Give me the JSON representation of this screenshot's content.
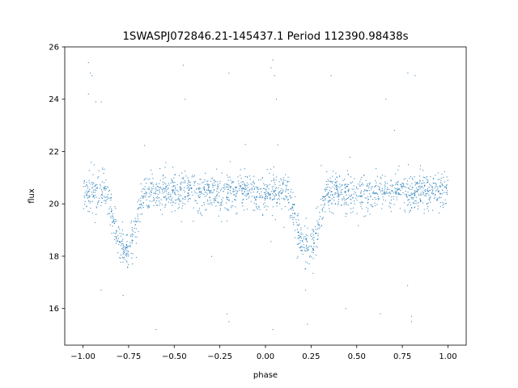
{
  "chart_data": {
    "type": "scatter",
    "title": "1SWASPJ072846.21-145437.1 Period 112390.98438s",
    "xlabel": "phase",
    "ylabel": "flux",
    "xlim": [
      -1.1,
      1.1
    ],
    "ylim": [
      14.6,
      26
    ],
    "xticks": [
      -1.0,
      -0.75,
      -0.5,
      -0.25,
      0.0,
      0.25,
      0.5,
      0.75,
      1.0
    ],
    "xtick_labels": [
      "−1.00",
      "−0.75",
      "−0.50",
      "−0.25",
      "0.00",
      "0.25",
      "0.50",
      "0.75",
      "1.00"
    ],
    "yticks": [
      16,
      18,
      20,
      22,
      24,
      26
    ],
    "ytick_labels": [
      "16",
      "18",
      "20",
      "22",
      "24",
      "26"
    ],
    "grid": false,
    "marker_color": "#1f77b4",
    "series": [
      {
        "baseline_flux": 20.45,
        "scatter_sigma": 0.35,
        "eclipses": [
          {
            "center_phase": -0.77,
            "min_flux": 18.2,
            "half_width": 0.11
          },
          {
            "center_phase": 0.23,
            "min_flux": 18.2,
            "half_width": 0.11
          }
        ],
        "outliers": [
          [
            -0.97,
            25.4
          ],
          [
            -0.96,
            25.0
          ],
          [
            -0.95,
            24.9
          ],
          [
            -0.93,
            23.9
          ],
          [
            -0.9,
            23.9
          ],
          [
            -0.97,
            24.2
          ],
          [
            -0.2,
            25.0
          ],
          [
            -0.21,
            15.8
          ],
          [
            -0.2,
            15.5
          ],
          [
            0.04,
            25.5
          ],
          [
            0.03,
            25.2
          ],
          [
            0.05,
            24.9
          ],
          [
            0.06,
            24.0
          ],
          [
            0.78,
            25.0
          ],
          [
            0.82,
            24.9
          ],
          [
            0.8,
            15.7
          ],
          [
            0.8,
            15.5
          ],
          [
            0.04,
            15.2
          ],
          [
            -0.6,
            15.2
          ],
          [
            -0.9,
            16.7
          ],
          [
            -0.55,
            21.4
          ],
          [
            0.63,
            15.8
          ],
          [
            0.23,
            15.4
          ],
          [
            0.66,
            24.0
          ],
          [
            -0.44,
            24.0
          ],
          [
            0.36,
            24.9
          ],
          [
            -0.45,
            25.3
          ],
          [
            0.44,
            16.0
          ],
          [
            -0.78,
            16.5
          ],
          [
            0.22,
            16.7
          ]
        ]
      }
    ]
  }
}
